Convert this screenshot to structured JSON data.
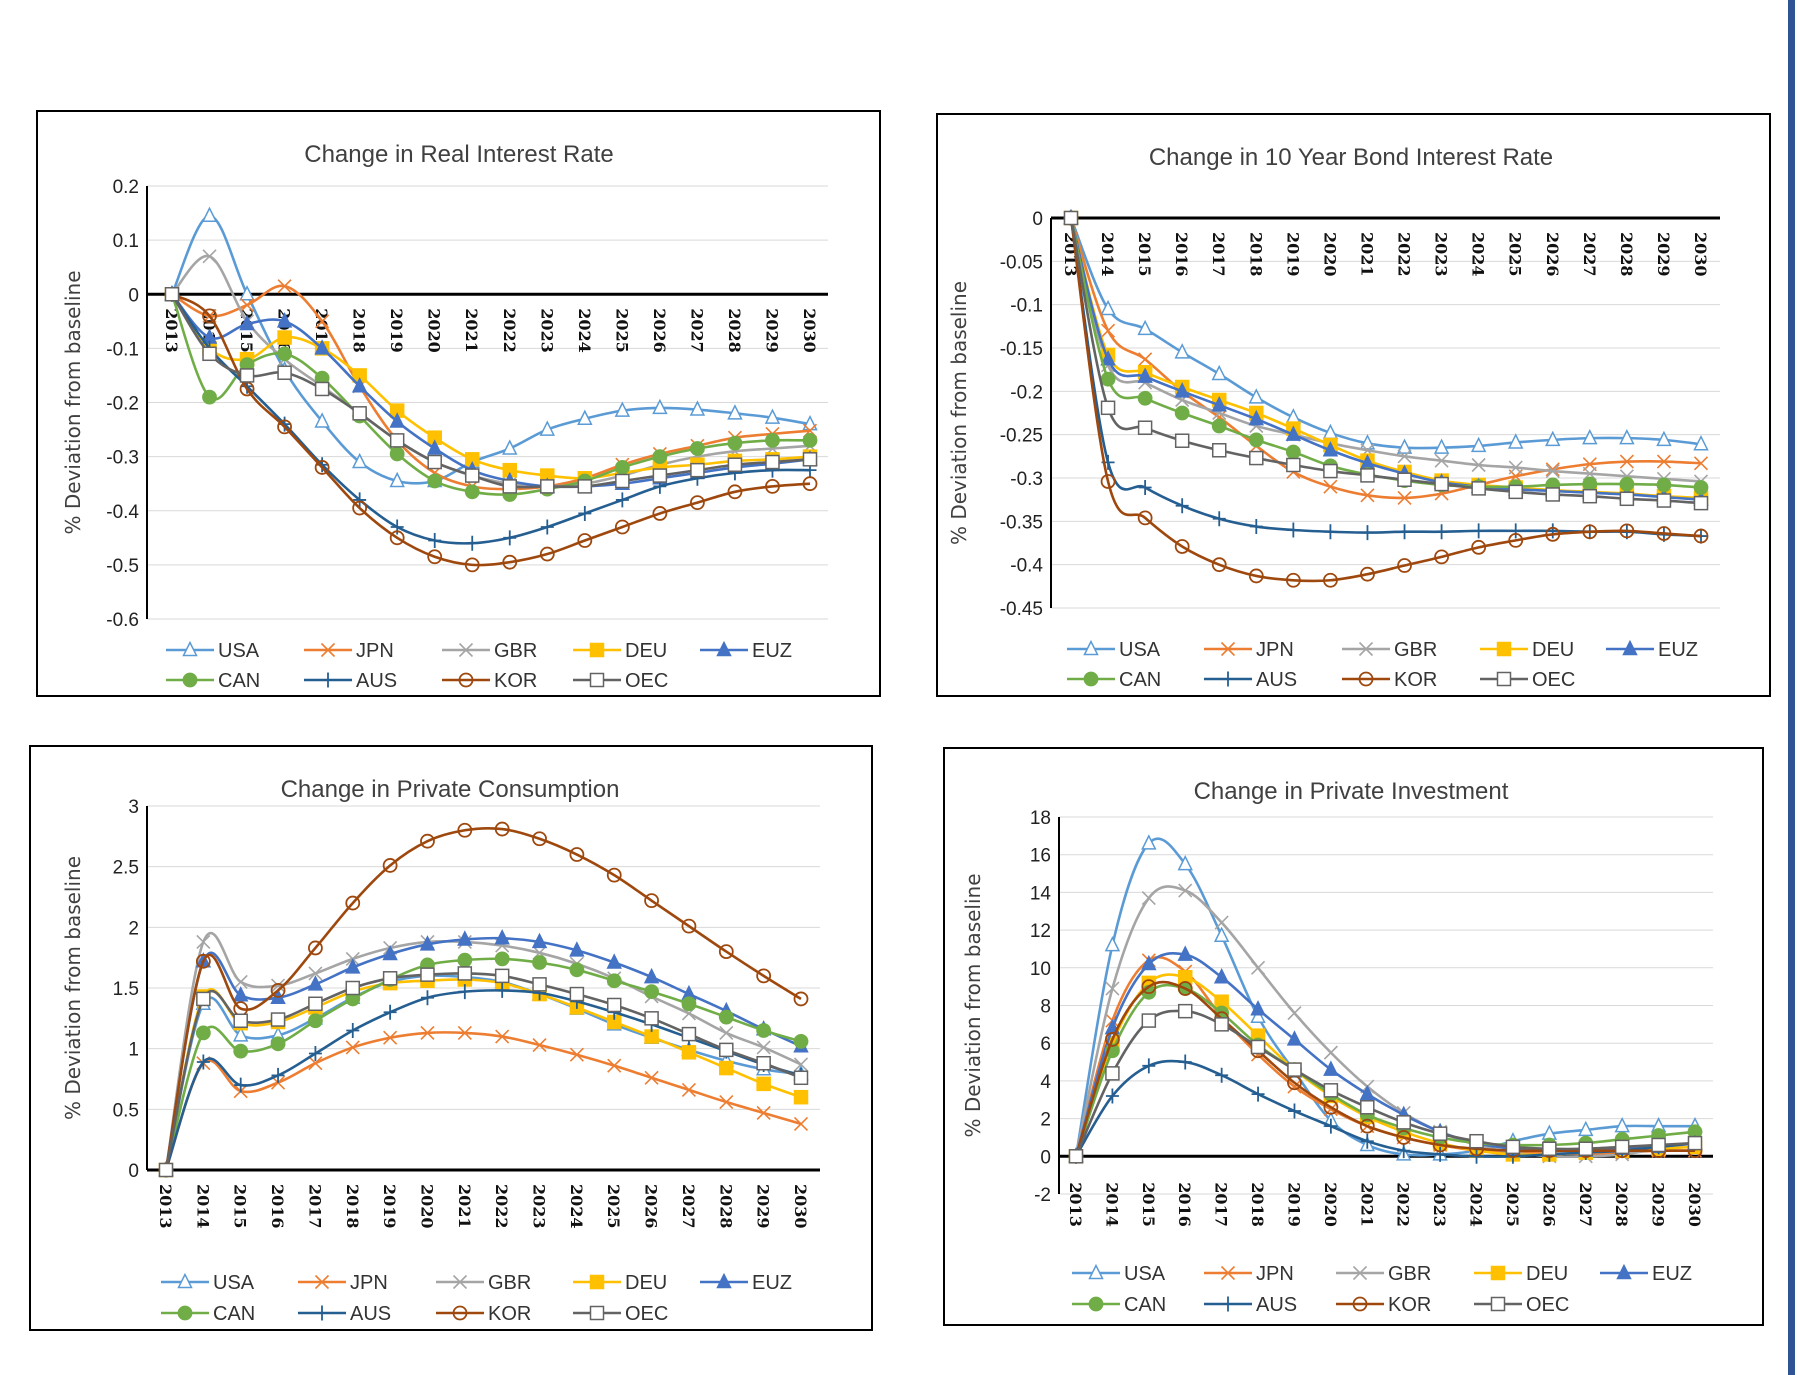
{
  "chart_data": [
    {
      "type": "line",
      "title": "Change in Real Interest Rate",
      "xlabel": "",
      "ylabel": "% Deviation from baseline",
      "ylim": [
        -0.6,
        0.2
      ],
      "yticks": [
        0.2,
        0.1,
        0,
        -0.1,
        -0.2,
        -0.3,
        -0.4,
        -0.5,
        -0.6
      ],
      "grid": true,
      "legend": "bottom",
      "categories": [
        "2013",
        "2014",
        "2015",
        "2016",
        "2017",
        "2018",
        "2019",
        "2020",
        "2021",
        "2022",
        "2023",
        "2024",
        "2025",
        "2026",
        "2027",
        "2028",
        "2029",
        "2030"
      ],
      "series": [
        {
          "name": "USA",
          "color": "#5b9bd5",
          "marker": "triangle-open",
          "values": [
            0,
            0.145,
            0,
            -0.14,
            -0.235,
            -0.31,
            -0.345,
            -0.345,
            -0.31,
            -0.285,
            -0.25,
            -0.23,
            -0.215,
            -0.21,
            -0.213,
            -0.22,
            -0.228,
            -0.24
          ]
        },
        {
          "name": "JPN",
          "color": "#ed7d31",
          "marker": "x",
          "values": [
            0,
            -0.04,
            -0.02,
            0.015,
            -0.05,
            -0.17,
            -0.27,
            -0.33,
            -0.355,
            -0.36,
            -0.355,
            -0.34,
            -0.315,
            -0.295,
            -0.28,
            -0.265,
            -0.258,
            -0.252
          ]
        },
        {
          "name": "GBR",
          "color": "#a5a5a5",
          "marker": "x",
          "values": [
            0,
            0.07,
            -0.05,
            -0.12,
            -0.17,
            -0.22,
            -0.27,
            -0.31,
            -0.335,
            -0.35,
            -0.355,
            -0.35,
            -0.335,
            -0.315,
            -0.3,
            -0.29,
            -0.285,
            -0.28
          ]
        },
        {
          "name": "DEU",
          "color": "#ffc000",
          "marker": "square",
          "values": [
            0,
            -0.1,
            -0.12,
            -0.08,
            -0.1,
            -0.15,
            -0.215,
            -0.265,
            -0.305,
            -0.325,
            -0.335,
            -0.34,
            -0.33,
            -0.32,
            -0.315,
            -0.308,
            -0.305,
            -0.3
          ]
        },
        {
          "name": "EUZ",
          "color": "#4472c4",
          "marker": "triangle",
          "values": [
            0,
            -0.08,
            -0.055,
            -0.05,
            -0.1,
            -0.17,
            -0.235,
            -0.285,
            -0.325,
            -0.345,
            -0.355,
            -0.355,
            -0.35,
            -0.34,
            -0.33,
            -0.32,
            -0.313,
            -0.305
          ]
        },
        {
          "name": "CAN",
          "color": "#70ad47",
          "marker": "circle",
          "values": [
            0,
            -0.19,
            -0.13,
            -0.11,
            -0.155,
            -0.225,
            -0.295,
            -0.345,
            -0.365,
            -0.37,
            -0.36,
            -0.345,
            -0.32,
            -0.3,
            -0.285,
            -0.275,
            -0.27,
            -0.27
          ]
        },
        {
          "name": "AUS",
          "color": "#255e91",
          "marker": "plus",
          "values": [
            0,
            -0.1,
            -0.17,
            -0.24,
            -0.315,
            -0.38,
            -0.43,
            -0.455,
            -0.46,
            -0.45,
            -0.43,
            -0.405,
            -0.38,
            -0.355,
            -0.34,
            -0.33,
            -0.325,
            -0.325
          ]
        },
        {
          "name": "KOR",
          "color": "#9e480e",
          "marker": "circle-open",
          "values": [
            0,
            -0.04,
            -0.175,
            -0.245,
            -0.32,
            -0.395,
            -0.45,
            -0.485,
            -0.5,
            -0.495,
            -0.48,
            -0.455,
            -0.43,
            -0.405,
            -0.385,
            -0.365,
            -0.355,
            -0.35
          ]
        },
        {
          "name": "OEC",
          "color": "#636363",
          "marker": "square-open",
          "values": [
            0,
            -0.11,
            -0.15,
            -0.145,
            -0.175,
            -0.22,
            -0.27,
            -0.31,
            -0.335,
            -0.355,
            -0.355,
            -0.355,
            -0.345,
            -0.335,
            -0.325,
            -0.315,
            -0.31,
            -0.305
          ]
        }
      ]
    },
    {
      "type": "line",
      "title": "Change in 10 Year Bond Interest Rate",
      "xlabel": "",
      "ylabel": "% Deviation from baseline",
      "ylim": [
        -0.45,
        0
      ],
      "yticks": [
        0,
        -0.05,
        -0.1,
        -0.15,
        -0.2,
        -0.25,
        -0.3,
        -0.35,
        -0.4,
        -0.45
      ],
      "grid": true,
      "legend": "bottom",
      "categories": [
        "2013",
        "2014",
        "2015",
        "2016",
        "2017",
        "2018",
        "2019",
        "2020",
        "2021",
        "2022",
        "2023",
        "2024",
        "2025",
        "2026",
        "2027",
        "2028",
        "2029",
        "2030"
      ],
      "series": [
        {
          "name": "USA",
          "color": "#5b9bd5",
          "marker": "triangle-open",
          "values": [
            0,
            -0.105,
            -0.128,
            -0.155,
            -0.18,
            -0.207,
            -0.23,
            -0.248,
            -0.26,
            -0.265,
            -0.265,
            -0.263,
            -0.259,
            -0.256,
            -0.254,
            -0.254,
            -0.256,
            -0.261
          ]
        },
        {
          "name": "JPN",
          "color": "#ed7d31",
          "marker": "x",
          "values": [
            0,
            -0.13,
            -0.163,
            -0.2,
            -0.23,
            -0.263,
            -0.293,
            -0.31,
            -0.32,
            -0.323,
            -0.318,
            -0.308,
            -0.298,
            -0.29,
            -0.284,
            -0.281,
            -0.281,
            -0.283
          ]
        },
        {
          "name": "GBR",
          "color": "#a5a5a5",
          "marker": "x",
          "values": [
            0,
            -0.17,
            -0.19,
            -0.21,
            -0.225,
            -0.24,
            -0.25,
            -0.26,
            -0.268,
            -0.275,
            -0.28,
            -0.285,
            -0.288,
            -0.292,
            -0.295,
            -0.298,
            -0.301,
            -0.304
          ]
        },
        {
          "name": "DEU",
          "color": "#ffc000",
          "marker": "square",
          "values": [
            0,
            -0.158,
            -0.178,
            -0.195,
            -0.21,
            -0.225,
            -0.243,
            -0.262,
            -0.28,
            -0.293,
            -0.303,
            -0.308,
            -0.311,
            -0.314,
            -0.316,
            -0.318,
            -0.321,
            -0.323
          ]
        },
        {
          "name": "EUZ",
          "color": "#4472c4",
          "marker": "triangle",
          "values": [
            0,
            -0.163,
            -0.183,
            -0.2,
            -0.216,
            -0.232,
            -0.25,
            -0.268,
            -0.283,
            -0.295,
            -0.305,
            -0.31,
            -0.313,
            -0.315,
            -0.317,
            -0.319,
            -0.322,
            -0.325
          ]
        },
        {
          "name": "CAN",
          "color": "#70ad47",
          "marker": "circle",
          "values": [
            0,
            -0.186,
            -0.208,
            -0.225,
            -0.24,
            -0.256,
            -0.27,
            -0.286,
            -0.296,
            -0.303,
            -0.308,
            -0.31,
            -0.31,
            -0.308,
            -0.307,
            -0.307,
            -0.308,
            -0.311
          ]
        },
        {
          "name": "AUS",
          "color": "#255e91",
          "marker": "plus",
          "values": [
            0,
            -0.282,
            -0.311,
            -0.332,
            -0.347,
            -0.356,
            -0.36,
            -0.362,
            -0.363,
            -0.362,
            -0.362,
            -0.361,
            -0.361,
            -0.361,
            -0.362,
            -0.362,
            -0.365,
            -0.367
          ]
        },
        {
          "name": "KOR",
          "color": "#9e480e",
          "marker": "circle-open",
          "values": [
            0,
            -0.304,
            -0.346,
            -0.379,
            -0.4,
            -0.413,
            -0.418,
            -0.418,
            -0.411,
            -0.401,
            -0.391,
            -0.38,
            -0.372,
            -0.365,
            -0.362,
            -0.361,
            -0.364,
            -0.367
          ]
        },
        {
          "name": "OEC",
          "color": "#636363",
          "marker": "square-open",
          "values": [
            0,
            -0.219,
            -0.242,
            -0.257,
            -0.268,
            -0.277,
            -0.285,
            -0.292,
            -0.297,
            -0.302,
            -0.307,
            -0.312,
            -0.316,
            -0.319,
            -0.321,
            -0.324,
            -0.326,
            -0.329
          ]
        }
      ]
    },
    {
      "type": "line",
      "title": "Change in Private Consumption",
      "xlabel": "",
      "ylabel": "% Deviation from baseline",
      "ylim": [
        0,
        3
      ],
      "yticks": [
        3,
        2.5,
        2,
        1.5,
        1,
        0.5,
        0
      ],
      "grid": true,
      "legend": "bottom",
      "categories": [
        "2013",
        "2014",
        "2015",
        "2016",
        "2017",
        "2018",
        "2019",
        "2020",
        "2021",
        "2022",
        "2023",
        "2024",
        "2025",
        "2026",
        "2027",
        "2028",
        "2029",
        "2030"
      ],
      "series": [
        {
          "name": "USA",
          "color": "#5b9bd5",
          "marker": "triangle-open",
          "values": [
            0,
            1.37,
            1.11,
            1.11,
            1.25,
            1.42,
            1.55,
            1.6,
            1.59,
            1.55,
            1.45,
            1.33,
            1.2,
            1.09,
            0.99,
            0.9,
            0.83,
            0.79
          ]
        },
        {
          "name": "JPN",
          "color": "#ed7d31",
          "marker": "x",
          "values": [
            0,
            0.88,
            0.65,
            0.72,
            0.88,
            1.01,
            1.09,
            1.13,
            1.13,
            1.1,
            1.03,
            0.95,
            0.86,
            0.76,
            0.66,
            0.56,
            0.47,
            0.38
          ]
        },
        {
          "name": "GBR",
          "color": "#a5a5a5",
          "marker": "x",
          "values": [
            0,
            1.88,
            1.55,
            1.52,
            1.62,
            1.74,
            1.83,
            1.88,
            1.88,
            1.85,
            1.79,
            1.7,
            1.58,
            1.43,
            1.29,
            1.13,
            1.01,
            0.87
          ]
        },
        {
          "name": "DEU",
          "color": "#ffc000",
          "marker": "square",
          "values": [
            0,
            1.43,
            1.21,
            1.22,
            1.34,
            1.47,
            1.54,
            1.56,
            1.57,
            1.54,
            1.45,
            1.34,
            1.22,
            1.1,
            0.97,
            0.84,
            0.71,
            0.6
          ]
        },
        {
          "name": "EUZ",
          "color": "#4472c4",
          "marker": "triangle",
          "values": [
            0,
            1.72,
            1.44,
            1.42,
            1.53,
            1.67,
            1.78,
            1.86,
            1.9,
            1.91,
            1.88,
            1.81,
            1.71,
            1.59,
            1.45,
            1.31,
            1.16,
            1.02
          ]
        },
        {
          "name": "CAN",
          "color": "#70ad47",
          "marker": "circle",
          "values": [
            0,
            1.13,
            0.98,
            1.04,
            1.23,
            1.41,
            1.57,
            1.69,
            1.73,
            1.74,
            1.71,
            1.65,
            1.56,
            1.47,
            1.37,
            1.26,
            1.15,
            1.06
          ]
        },
        {
          "name": "AUS",
          "color": "#255e91",
          "marker": "plus",
          "values": [
            0,
            0.89,
            0.7,
            0.78,
            0.96,
            1.15,
            1.3,
            1.42,
            1.47,
            1.48,
            1.46,
            1.39,
            1.3,
            1.2,
            1.09,
            0.98,
            0.87,
            0.78
          ]
        },
        {
          "name": "KOR",
          "color": "#9e480e",
          "marker": "circle-open",
          "values": [
            0,
            1.72,
            1.33,
            1.48,
            1.83,
            2.2,
            2.51,
            2.71,
            2.8,
            2.81,
            2.73,
            2.6,
            2.43,
            2.22,
            2.01,
            1.8,
            1.6,
            1.41
          ]
        },
        {
          "name": "OEC",
          "color": "#636363",
          "marker": "square-open",
          "values": [
            0,
            1.41,
            1.23,
            1.24,
            1.37,
            1.5,
            1.58,
            1.61,
            1.62,
            1.6,
            1.53,
            1.45,
            1.36,
            1.25,
            1.12,
            0.99,
            0.88,
            0.76
          ]
        }
      ]
    },
    {
      "type": "line",
      "title": "Change in Private Investment",
      "xlabel": "",
      "ylabel": "% Deviation from baseline",
      "ylim": [
        -2,
        18
      ],
      "yticks": [
        18,
        16,
        14,
        12,
        10,
        8,
        6,
        4,
        2,
        0,
        -2
      ],
      "grid": true,
      "legend": "bottom",
      "categories": [
        "2013",
        "2014",
        "2015",
        "2016",
        "2017",
        "2018",
        "2019",
        "2020",
        "2021",
        "2022",
        "2023",
        "2024",
        "2025",
        "2026",
        "2027",
        "2028",
        "2029",
        "2030"
      ],
      "series": [
        {
          "name": "USA",
          "color": "#5b9bd5",
          "marker": "triangle-open",
          "values": [
            0,
            11.2,
            16.6,
            15.5,
            11.7,
            7.4,
            4.5,
            1.9,
            0.6,
            0.1,
            0.1,
            0.3,
            0.8,
            1.2,
            1.4,
            1.6,
            1.6,
            1.6
          ]
        },
        {
          "name": "JPN",
          "color": "#ed7d31",
          "marker": "x",
          "values": [
            0,
            7.2,
            10.4,
            9.8,
            7.4,
            5.4,
            3.7,
            2.5,
            1.6,
            1.0,
            0.6,
            0.3,
            0.2,
            0.15,
            0.15,
            0.2,
            0.3,
            0.3
          ]
        },
        {
          "name": "GBR",
          "color": "#a5a5a5",
          "marker": "x",
          "values": [
            0,
            8.9,
            13.7,
            14.1,
            12.4,
            10.0,
            7.6,
            5.5,
            3.7,
            2.3,
            1.3,
            0.6,
            0.2,
            0.0,
            0.0,
            0.1,
            0.4,
            0.7
          ]
        },
        {
          "name": "DEU",
          "color": "#ffc000",
          "marker": "square",
          "values": [
            0,
            6.0,
            9.2,
            9.5,
            8.2,
            6.4,
            4.6,
            3.2,
            2.1,
            1.3,
            0.7,
            0.3,
            0.1,
            0.1,
            0.2,
            0.3,
            0.4,
            0.5
          ]
        },
        {
          "name": "EUZ",
          "color": "#4472c4",
          "marker": "triangle",
          "values": [
            0,
            6.8,
            10.2,
            10.7,
            9.5,
            7.8,
            6.2,
            4.6,
            3.3,
            2.2,
            1.3,
            0.7,
            0.4,
            0.3,
            0.3,
            0.4,
            0.5,
            0.7
          ]
        },
        {
          "name": "CAN",
          "color": "#70ad47",
          "marker": "circle",
          "values": [
            0,
            5.6,
            8.7,
            8.9,
            7.6,
            5.9,
            4.6,
            3.3,
            2.2,
            1.5,
            1.0,
            0.7,
            0.6,
            0.6,
            0.7,
            0.9,
            1.1,
            1.3
          ]
        },
        {
          "name": "AUS",
          "color": "#255e91",
          "marker": "plus",
          "values": [
            0,
            3.2,
            4.8,
            5.0,
            4.3,
            3.3,
            2.4,
            1.6,
            0.8,
            0.3,
            0.1,
            0.0,
            0.0,
            0.1,
            0.2,
            0.3,
            0.5,
            0.7
          ]
        },
        {
          "name": "KOR",
          "color": "#9e480e",
          "marker": "circle-open",
          "values": [
            0,
            6.2,
            9.0,
            8.9,
            7.3,
            5.6,
            3.9,
            2.6,
            1.6,
            1.0,
            0.6,
            0.4,
            0.3,
            0.3,
            0.3,
            0.3,
            0.3,
            0.3
          ]
        },
        {
          "name": "OEC",
          "color": "#636363",
          "marker": "square-open",
          "values": [
            0,
            4.4,
            7.2,
            7.7,
            7.0,
            5.8,
            4.6,
            3.5,
            2.6,
            1.8,
            1.2,
            0.8,
            0.5,
            0.4,
            0.4,
            0.5,
            0.6,
            0.7
          ]
        }
      ]
    }
  ]
}
